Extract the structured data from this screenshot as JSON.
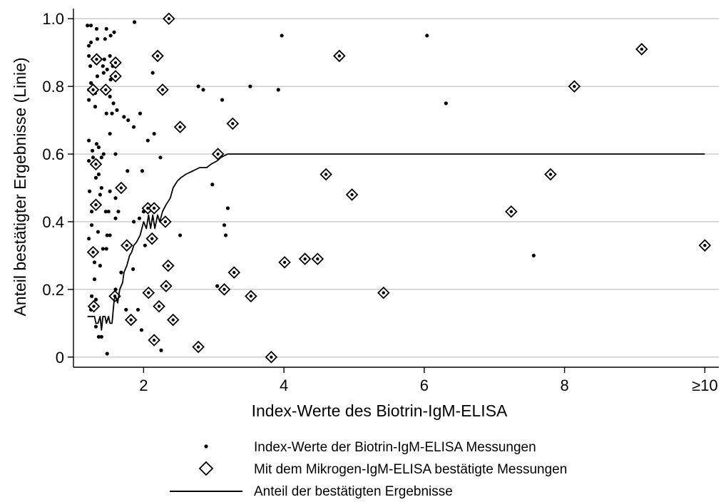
{
  "chart_data": {
    "type": "scatter",
    "xlabel": "Index-Werte des Biotrin-IgM-ELISA",
    "ylabel": "Anteil bestätigter Ergebnisse (Linie)",
    "xlim": [
      1.0,
      10.2
    ],
    "ylim": [
      -0.03,
      1.03
    ],
    "x_ticks": [
      {
        "value": 2,
        "label": "2"
      },
      {
        "value": 4,
        "label": "4"
      },
      {
        "value": 6,
        "label": "6"
      },
      {
        "value": 8,
        "label": "8"
      },
      {
        "value": 10,
        "label": "≥10"
      }
    ],
    "y_ticks": [
      {
        "value": 0,
        "label": "0"
      },
      {
        "value": 0.2,
        "label": "0.2"
      },
      {
        "value": 0.4,
        "label": "0.4"
      },
      {
        "value": 0.6,
        "label": "0.6"
      },
      {
        "value": 0.8,
        "label": "0.8"
      },
      {
        "value": 1.0,
        "label": "1.0"
      }
    ],
    "grid": "horizontal",
    "legend_position": "bottom",
    "series": [
      {
        "name": "Index-Werte der Biotrin-IgM-ELISA Messungen",
        "marker": "dot",
        "color": "#000000",
        "points": [
          [
            1.2,
            0.98
          ],
          [
            1.25,
            0.98
          ],
          [
            1.33,
            0.97
          ],
          [
            1.47,
            0.97
          ],
          [
            1.58,
            0.96
          ],
          [
            1.87,
            0.99
          ],
          [
            1.22,
            0.92
          ],
          [
            1.25,
            0.93
          ],
          [
            1.34,
            0.94
          ],
          [
            1.45,
            0.94
          ],
          [
            1.53,
            0.95
          ],
          [
            1.22,
            0.89
          ],
          [
            1.28,
            0.88
          ],
          [
            1.38,
            0.88
          ],
          [
            1.44,
            0.88
          ],
          [
            1.52,
            0.89
          ],
          [
            1.24,
            0.86
          ],
          [
            1.32,
            0.87
          ],
          [
            1.42,
            0.86
          ],
          [
            1.48,
            0.85
          ],
          [
            1.56,
            0.86
          ],
          [
            1.25,
            0.81
          ],
          [
            1.34,
            0.83
          ],
          [
            1.43,
            0.84
          ],
          [
            1.53,
            0.82
          ],
          [
            1.62,
            0.83
          ],
          [
            2.13,
            0.84
          ],
          [
            1.22,
            0.79
          ],
          [
            1.31,
            0.78
          ],
          [
            1.47,
            0.78
          ],
          [
            1.52,
            0.77
          ],
          [
            1.57,
            0.75
          ],
          [
            1.22,
            0.76
          ],
          [
            1.31,
            0.74
          ],
          [
            1.47,
            0.72
          ],
          [
            1.55,
            0.72
          ],
          [
            1.62,
            0.73
          ],
          [
            1.72,
            0.71
          ],
          [
            1.78,
            0.7
          ],
          [
            1.95,
            0.72
          ],
          [
            1.86,
            0.68
          ],
          [
            2.15,
            0.66
          ],
          [
            1.52,
            0.66
          ],
          [
            1.22,
            0.64
          ],
          [
            1.33,
            0.63
          ],
          [
            2.06,
            0.64
          ],
          [
            1.36,
            0.62
          ],
          [
            1.4,
            0.59
          ],
          [
            1.27,
            0.61
          ],
          [
            1.33,
            0.58
          ],
          [
            1.43,
            0.6
          ],
          [
            1.6,
            0.6
          ],
          [
            1.22,
            0.58
          ],
          [
            1.28,
            0.59
          ],
          [
            1.36,
            0.54
          ],
          [
            1.32,
            0.53
          ],
          [
            1.77,
            0.55
          ],
          [
            1.98,
            0.55
          ],
          [
            1.23,
            0.49
          ],
          [
            1.38,
            0.48
          ],
          [
            1.4,
            0.5
          ],
          [
            1.52,
            0.49
          ],
          [
            1.6,
            0.47
          ],
          [
            1.3,
            0.45
          ],
          [
            1.26,
            0.43
          ],
          [
            1.46,
            0.43
          ],
          [
            1.5,
            0.43
          ],
          [
            1.64,
            0.43
          ],
          [
            1.6,
            0.41
          ],
          [
            1.86,
            0.4
          ],
          [
            1.94,
            0.41
          ],
          [
            2.0,
            0.43
          ],
          [
            2.07,
            0.44
          ],
          [
            1.26,
            0.39
          ],
          [
            1.35,
            0.37
          ],
          [
            1.48,
            0.36
          ],
          [
            1.52,
            0.36
          ],
          [
            1.22,
            0.35
          ],
          [
            2.02,
            0.33
          ],
          [
            1.28,
            0.31
          ],
          [
            1.42,
            0.32
          ],
          [
            1.47,
            0.32
          ],
          [
            1.3,
            0.28
          ],
          [
            1.38,
            0.27
          ],
          [
            1.68,
            0.25
          ],
          [
            1.85,
            0.26
          ],
          [
            1.3,
            0.23
          ],
          [
            1.26,
            0.18
          ],
          [
            1.32,
            0.17
          ],
          [
            1.25,
            0.14
          ],
          [
            1.32,
            0.09
          ],
          [
            1.36,
            0.06
          ],
          [
            1.4,
            0.06
          ],
          [
            1.6,
            0.2
          ],
          [
            1.75,
            0.14
          ],
          [
            1.92,
            0.14
          ],
          [
            1.97,
            0.08
          ],
          [
            1.48,
            0.01
          ],
          [
            2.25,
            0.02
          ],
          [
            2.24,
            0.59
          ],
          [
            2.52,
            0.36
          ],
          [
            2.78,
            0.8
          ],
          [
            2.85,
            0.79
          ],
          [
            2.98,
            0.51
          ],
          [
            3.12,
            0.76
          ],
          [
            3.15,
            0.39
          ],
          [
            3.17,
            0.36
          ],
          [
            3.2,
            0.44
          ],
          [
            3.05,
            0.21
          ],
          [
            3.52,
            0.8
          ],
          [
            3.92,
            0.79
          ],
          [
            3.97,
            0.95
          ],
          [
            6.04,
            0.95
          ],
          [
            6.31,
            0.75
          ],
          [
            7.56,
            0.3
          ]
        ]
      },
      {
        "name": "Mit dem Mikrogen-IgM-ELISA bestätigte Messungen",
        "marker": "diamond",
        "color": "#000000",
        "points": [
          [
            2.36,
            1.0
          ],
          [
            1.33,
            0.88
          ],
          [
            1.6,
            0.87
          ],
          [
            2.2,
            0.89
          ],
          [
            4.79,
            0.89
          ],
          [
            9.1,
            0.91
          ],
          [
            1.6,
            0.83
          ],
          [
            1.28,
            0.79
          ],
          [
            1.46,
            0.79
          ],
          [
            2.27,
            0.79
          ],
          [
            8.14,
            0.8
          ],
          [
            2.52,
            0.68
          ],
          [
            3.27,
            0.69
          ],
          [
            3.06,
            0.6
          ],
          [
            1.32,
            0.57
          ],
          [
            4.6,
            0.54
          ],
          [
            7.8,
            0.54
          ],
          [
            1.68,
            0.5
          ],
          [
            4.97,
            0.48
          ],
          [
            1.32,
            0.45
          ],
          [
            2.06,
            0.44
          ],
          [
            2.15,
            0.44
          ],
          [
            7.24,
            0.43
          ],
          [
            2.31,
            0.4
          ],
          [
            2.12,
            0.35
          ],
          [
            1.76,
            0.33
          ],
          [
            1.28,
            0.31
          ],
          [
            10.0,
            0.33
          ],
          [
            4.3,
            0.29
          ],
          [
            4.48,
            0.29
          ],
          [
            4.01,
            0.28
          ],
          [
            2.35,
            0.27
          ],
          [
            3.29,
            0.25
          ],
          [
            2.32,
            0.21
          ],
          [
            3.15,
            0.2
          ],
          [
            2.07,
            0.19
          ],
          [
            1.59,
            0.18
          ],
          [
            3.53,
            0.18
          ],
          [
            5.42,
            0.19
          ],
          [
            1.29,
            0.15
          ],
          [
            2.22,
            0.15
          ],
          [
            1.82,
            0.11
          ],
          [
            2.42,
            0.11
          ],
          [
            2.15,
            0.05
          ],
          [
            2.78,
            0.03
          ],
          [
            3.82,
            0.0
          ]
        ]
      },
      {
        "name": "Anteil der bestätigten Ergebnisse",
        "marker": "line",
        "color": "#000000",
        "points": [
          [
            1.2,
            0.12
          ],
          [
            1.3,
            0.12
          ],
          [
            1.32,
            0.1
          ],
          [
            1.35,
            0.1
          ],
          [
            1.38,
            0.12
          ],
          [
            1.4,
            0.08
          ],
          [
            1.42,
            0.12
          ],
          [
            1.45,
            0.12
          ],
          [
            1.47,
            0.1
          ],
          [
            1.5,
            0.12
          ],
          [
            1.52,
            0.1
          ],
          [
            1.55,
            0.1
          ],
          [
            1.58,
            0.17
          ],
          [
            1.6,
            0.18
          ],
          [
            1.63,
            0.16
          ],
          [
            1.66,
            0.2
          ],
          [
            1.7,
            0.22
          ],
          [
            1.72,
            0.25
          ],
          [
            1.76,
            0.27
          ],
          [
            1.8,
            0.3
          ],
          [
            1.83,
            0.31
          ],
          [
            1.86,
            0.33
          ],
          [
            1.9,
            0.34
          ],
          [
            1.95,
            0.36
          ],
          [
            2.0,
            0.4
          ],
          [
            2.04,
            0.38
          ],
          [
            2.07,
            0.42
          ],
          [
            2.1,
            0.38
          ],
          [
            2.13,
            0.42
          ],
          [
            2.16,
            0.38
          ],
          [
            2.2,
            0.42
          ],
          [
            2.23,
            0.4
          ],
          [
            2.27,
            0.43
          ],
          [
            2.32,
            0.45
          ],
          [
            2.38,
            0.47
          ],
          [
            2.42,
            0.5
          ],
          [
            2.48,
            0.52
          ],
          [
            2.53,
            0.53
          ],
          [
            2.6,
            0.54
          ],
          [
            2.7,
            0.55
          ],
          [
            2.8,
            0.56
          ],
          [
            2.9,
            0.56
          ],
          [
            2.96,
            0.57
          ],
          [
            3.05,
            0.58
          ],
          [
            3.1,
            0.59
          ],
          [
            3.2,
            0.6
          ],
          [
            10.0,
            0.6
          ]
        ]
      }
    ]
  }
}
